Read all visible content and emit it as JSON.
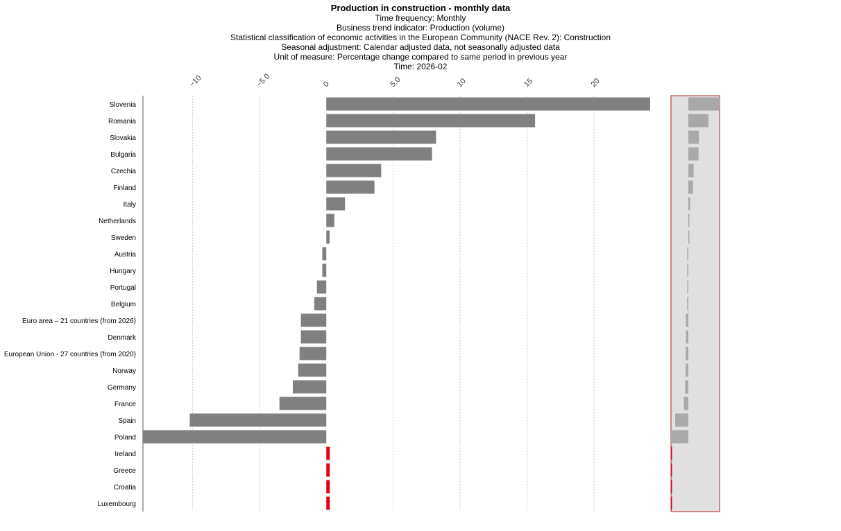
{
  "header": {
    "title": "Production in construction - monthly data",
    "lines": [
      "Time frequency:  Monthly",
      "Business trend indicator:  Production (volume)",
      "Statistical classification of economic activities in the European Community (NACE Rev. 2):  Construction",
      "Seasonal adjustment:  Calendar adjusted data, not seasonally adjusted data",
      "Unit of measure:  Percentage change compared to same period in previous year",
      "Time:  2026-02"
    ]
  },
  "chart_data": {
    "type": "bar",
    "orientation": "horizontal",
    "title": "Production in construction - monthly data",
    "x_ticks": [
      "−10",
      "−5.0",
      "0",
      "5.0",
      "10",
      "15",
      "20"
    ],
    "xlim": [
      -13.7,
      24.2
    ],
    "grid": "vertical dashed",
    "categories": [
      "Slovenia",
      "Romania",
      "Slovakia",
      "Bulgaria",
      "Czechia",
      "Finland",
      "Italy",
      "Netherlands",
      "Sweden",
      "Austria",
      "Hungary",
      "Portugal",
      "Belgium",
      "Euro area – 21 countries (from 2026)",
      "Denmark",
      "European Union - 27 countries (from 2020)",
      "Norway",
      "Germany",
      "France",
      "Spain",
      "Poland",
      "Ireland",
      "Greece",
      "Croatia",
      "Luxembourg"
    ],
    "values": [
      24.2,
      15.6,
      8.2,
      7.9,
      4.1,
      3.6,
      1.4,
      0.6,
      0.25,
      -0.3,
      -0.3,
      -0.7,
      -0.9,
      -1.9,
      -1.9,
      -2.0,
      -2.1,
      -2.5,
      -3.5,
      -10.2,
      -13.7,
      null,
      null,
      null,
      null
    ],
    "missing_color": "#e3000f",
    "bar_color": "#808080",
    "overview_panel": "right side mini-map of the full bar list"
  }
}
